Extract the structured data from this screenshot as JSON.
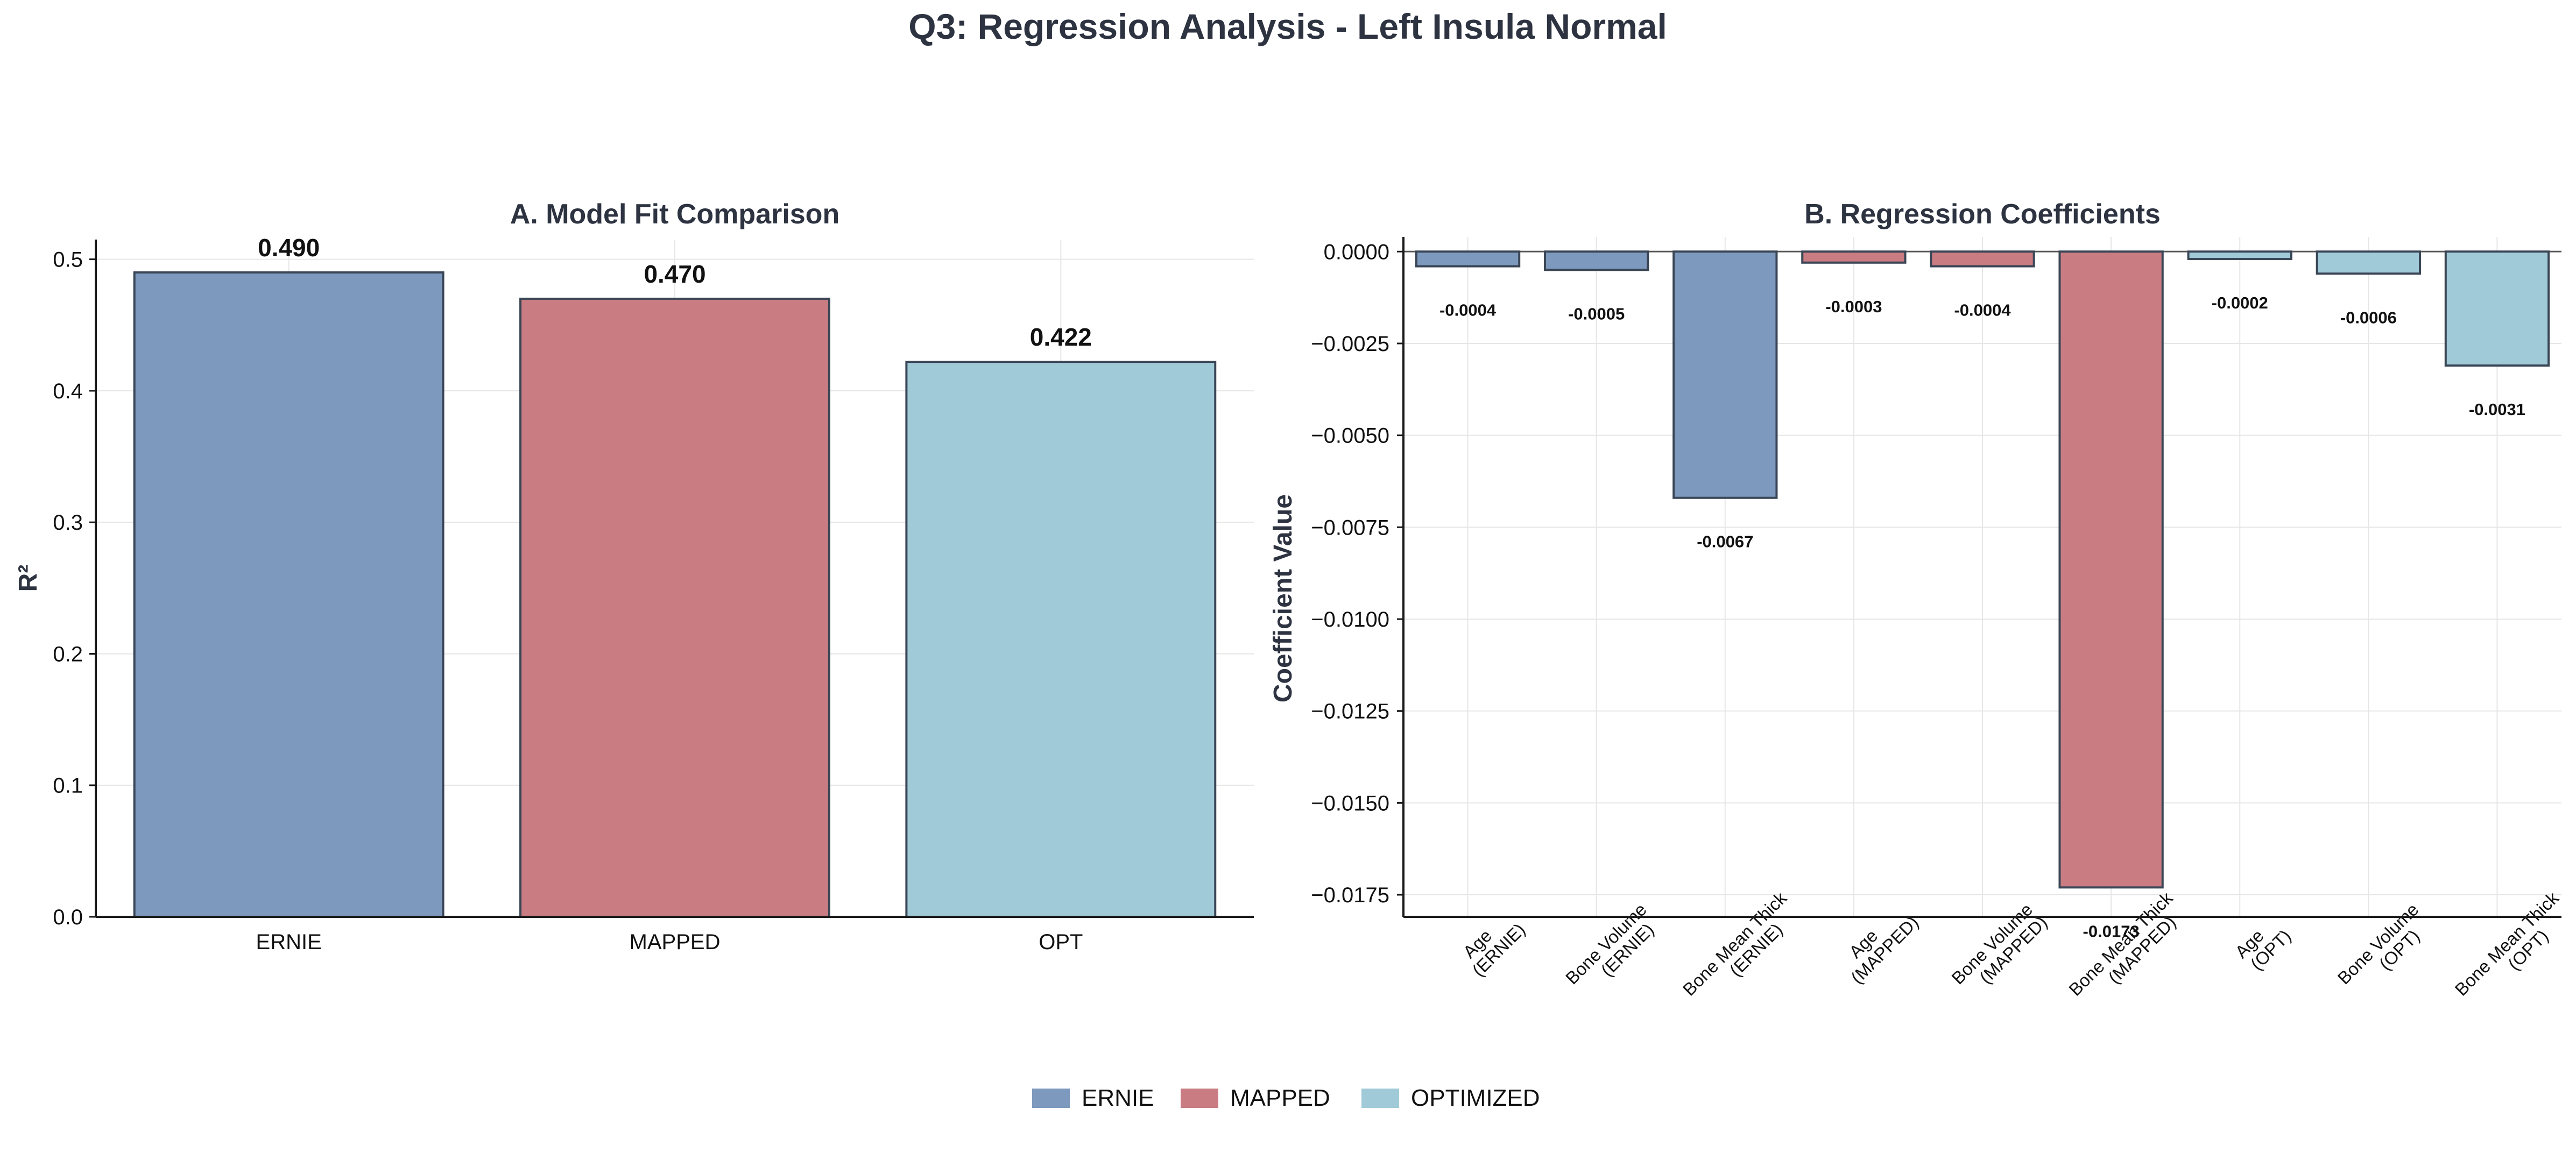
{
  "figure": {
    "title": "Q3: Regression Analysis - Left Insula Normal"
  },
  "colors": {
    "ERNIE": "#7d99bd",
    "MAPPED": "#c97c82",
    "OPT": "#a1cad8",
    "bar_edge": "#3a4656",
    "text": "#2d3340"
  },
  "legend": {
    "position": "bottom-center",
    "items": [
      {
        "label": "ERNIE",
        "color_key": "ERNIE"
      },
      {
        "label": "MAPPED",
        "color_key": "MAPPED"
      },
      {
        "label": "OPTIMIZED",
        "color_key": "OPT"
      }
    ]
  },
  "chart_data": [
    {
      "type": "bar",
      "title": "A. Model Fit Comparison",
      "xlabel": "",
      "ylabel": "R²",
      "ylim": [
        0,
        0.515
      ],
      "yticks": [
        0.0,
        0.1,
        0.2,
        0.3,
        0.4,
        0.5
      ],
      "ytick_labels": [
        "0.0",
        "0.1",
        "0.2",
        "0.3",
        "0.4",
        "0.5"
      ],
      "grid": true,
      "categories": [
        "ERNIE",
        "MAPPED",
        "OPT"
      ],
      "values": [
        0.49,
        0.47,
        0.422
      ],
      "value_labels": [
        "0.490",
        "0.470",
        "0.422"
      ],
      "color_keys": [
        "ERNIE",
        "MAPPED",
        "OPT"
      ]
    },
    {
      "type": "bar",
      "title": "B. Regression Coefficients",
      "xlabel": "",
      "ylabel": "Coefficient Value",
      "ylim": [
        -0.0181,
        0.0004
      ],
      "yticks": [
        0.0,
        -0.0025,
        -0.005,
        -0.0075,
        -0.01,
        -0.0125,
        -0.015,
        -0.0175
      ],
      "ytick_labels": [
        "0.0000",
        "−0.0025",
        "−0.0050",
        "−0.0075",
        "−0.0100",
        "−0.0125",
        "−0.0150",
        "−0.0175"
      ],
      "grid": true,
      "categories": [
        [
          "Age",
          "(ERNIE)"
        ],
        [
          "Bone Volume",
          "(ERNIE)"
        ],
        [
          "Bone Mean Thick",
          "(ERNIE)"
        ],
        [
          "Age",
          "(MAPPED)"
        ],
        [
          "Bone Volume",
          "(MAPPED)"
        ],
        [
          "Bone Mean Thick",
          "(MAPPED)"
        ],
        [
          "Age",
          "(OPT)"
        ],
        [
          "Bone Volume",
          "(OPT)"
        ],
        [
          "Bone Mean Thick",
          "(OPT)"
        ]
      ],
      "values": [
        -0.0004,
        -0.0005,
        -0.0067,
        -0.0003,
        -0.0004,
        -0.0173,
        -0.0002,
        -0.0006,
        -0.0031
      ],
      "value_labels": [
        "-0.0004",
        "-0.0005",
        "-0.0067",
        "-0.0003",
        "-0.0004",
        "-0.0173",
        "-0.0002",
        "-0.0006",
        "-0.0031"
      ],
      "color_keys": [
        "ERNIE",
        "ERNIE",
        "ERNIE",
        "MAPPED",
        "MAPPED",
        "MAPPED",
        "OPT",
        "OPT",
        "OPT"
      ]
    }
  ]
}
